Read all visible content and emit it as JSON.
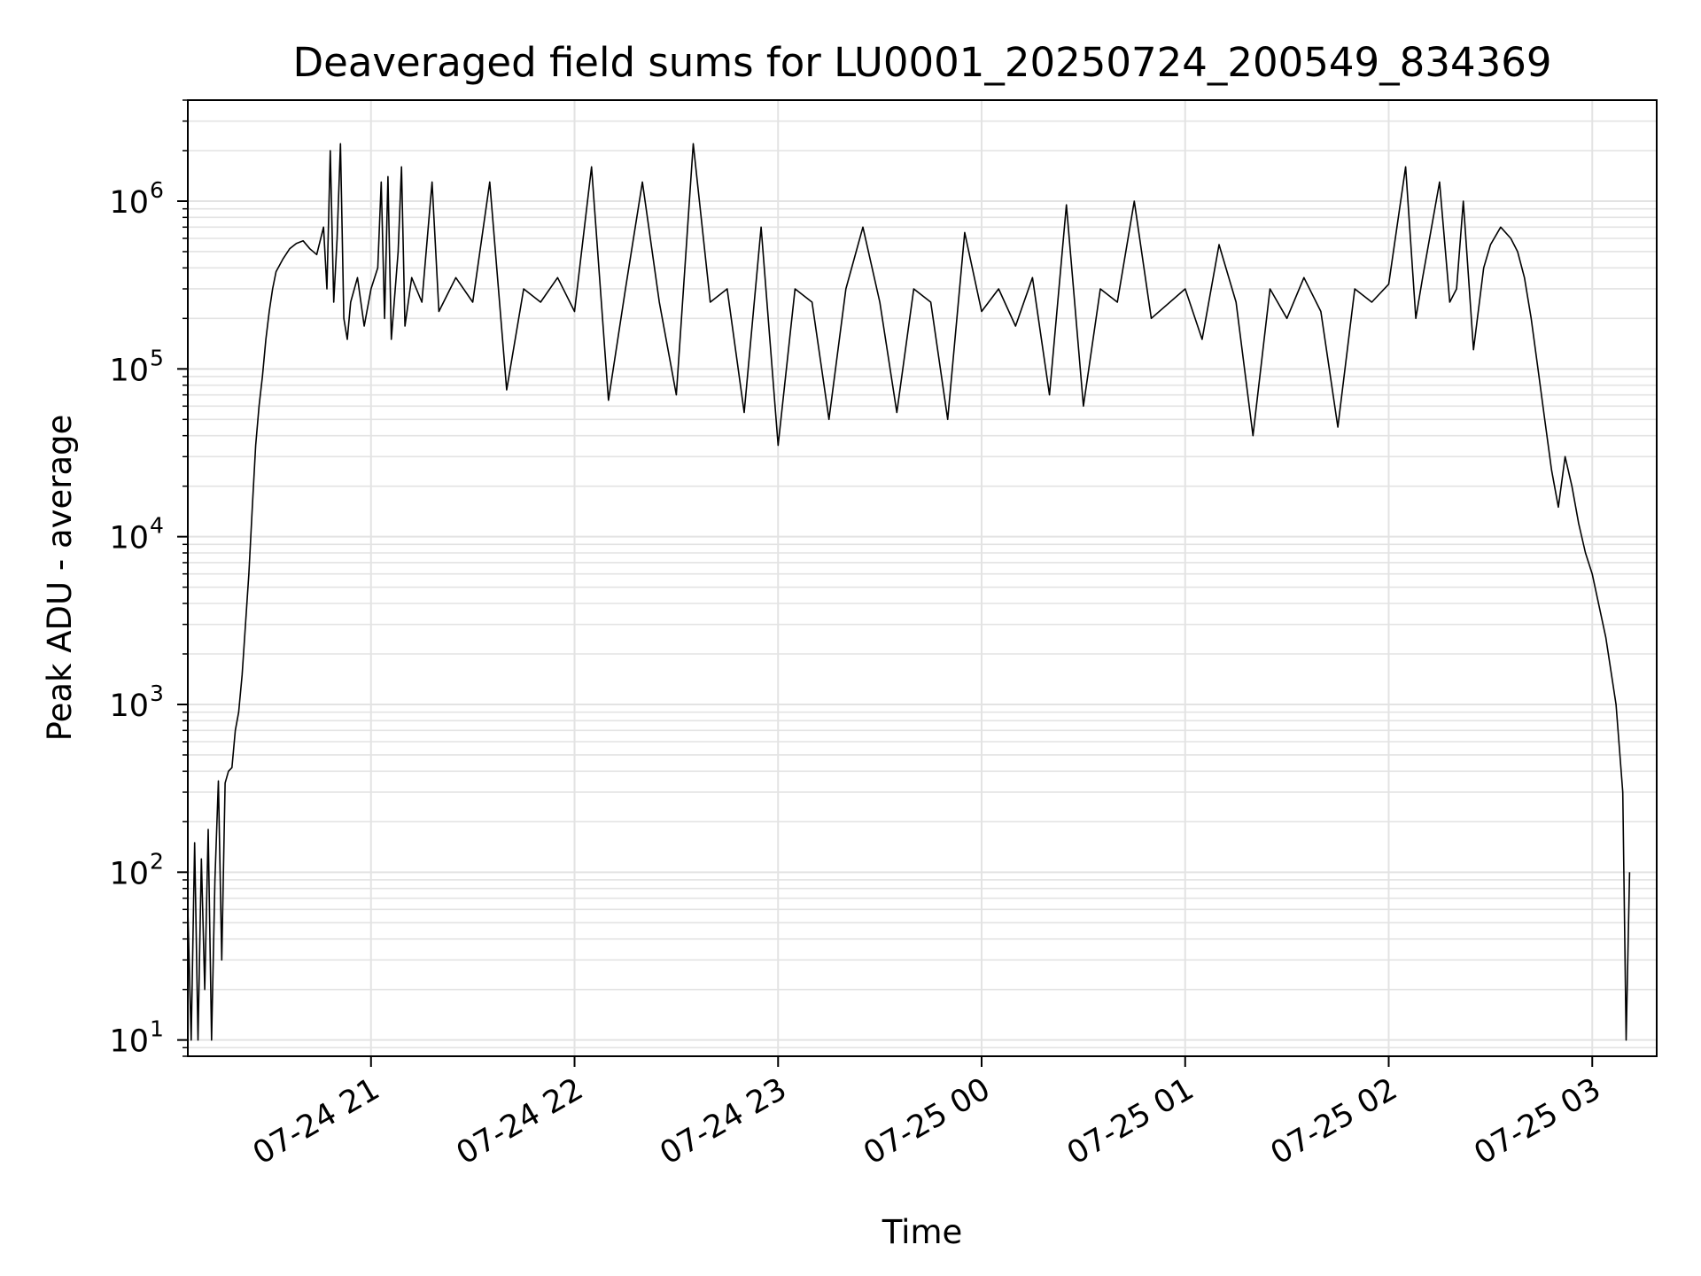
{
  "chart_data": {
    "type": "line",
    "title": "Deaveraged field sums for LU0001_20250724_200549_834369",
    "xlabel": "Time",
    "ylabel": "Peak ADU - average",
    "yscale": "log",
    "ylim": [
      8,
      4000000
    ],
    "xlim": [
      "2025-07-24 20:06:00",
      "2025-07-25 03:19:00"
    ],
    "grid": true,
    "x_ticks": [
      {
        "time": "2025-07-24 21:00",
        "label": "07-24 21"
      },
      {
        "time": "2025-07-24 22:00",
        "label": "07-24 22"
      },
      {
        "time": "2025-07-24 23:00",
        "label": "07-24 23"
      },
      {
        "time": "2025-07-25 00:00",
        "label": "07-25 00"
      },
      {
        "time": "2025-07-25 01:00",
        "label": "07-25 01"
      },
      {
        "time": "2025-07-25 02:00",
        "label": "07-25 02"
      },
      {
        "time": "2025-07-25 03:00",
        "label": "07-25 03"
      }
    ],
    "y_ticks": [
      {
        "value": 10,
        "base": "10",
        "exp": "1"
      },
      {
        "value": 100,
        "base": "10",
        "exp": "2"
      },
      {
        "value": 1000,
        "base": "10",
        "exp": "3"
      },
      {
        "value": 10000,
        "base": "10",
        "exp": "4"
      },
      {
        "value": 100000,
        "base": "10",
        "exp": "5"
      },
      {
        "value": 1000000,
        "base": "10",
        "exp": "6"
      }
    ],
    "series": [
      {
        "color": "#000000",
        "points": [
          [
            "2025-07-24 20:06",
            60
          ],
          [
            "2025-07-24 20:07",
            10
          ],
          [
            "2025-07-24 20:08",
            150
          ],
          [
            "2025-07-24 20:09",
            10
          ],
          [
            "2025-07-24 20:10",
            120
          ],
          [
            "2025-07-24 20:11",
            20
          ],
          [
            "2025-07-24 20:12",
            180
          ],
          [
            "2025-07-24 20:13",
            10
          ],
          [
            "2025-07-24 20:14",
            90
          ],
          [
            "2025-07-24 20:15",
            350
          ],
          [
            "2025-07-24 20:16",
            30
          ],
          [
            "2025-07-24 20:17",
            340
          ],
          [
            "2025-07-24 20:18",
            400
          ],
          [
            "2025-07-24 20:19",
            420
          ],
          [
            "2025-07-24 20:20",
            700
          ],
          [
            "2025-07-24 20:21",
            900
          ],
          [
            "2025-07-24 20:22",
            1500
          ],
          [
            "2025-07-24 20:23",
            3000
          ],
          [
            "2025-07-24 20:24",
            6000
          ],
          [
            "2025-07-24 20:25",
            15000
          ],
          [
            "2025-07-24 20:26",
            35000
          ],
          [
            "2025-07-24 20:27",
            60000
          ],
          [
            "2025-07-24 20:28",
            90000
          ],
          [
            "2025-07-24 20:29",
            150000
          ],
          [
            "2025-07-24 20:30",
            220000
          ],
          [
            "2025-07-24 20:31",
            300000
          ],
          [
            "2025-07-24 20:32",
            380000
          ],
          [
            "2025-07-24 20:34",
            450000
          ],
          [
            "2025-07-24 20:36",
            520000
          ],
          [
            "2025-07-24 20:38",
            560000
          ],
          [
            "2025-07-24 20:40",
            580000
          ],
          [
            "2025-07-24 20:42",
            520000
          ],
          [
            "2025-07-24 20:44",
            480000
          ],
          [
            "2025-07-24 20:46",
            700000
          ],
          [
            "2025-07-24 20:47",
            300000
          ],
          [
            "2025-07-24 20:48",
            2000000
          ],
          [
            "2025-07-24 20:49",
            250000
          ],
          [
            "2025-07-24 20:50",
            600000
          ],
          [
            "2025-07-24 20:51",
            2200000
          ],
          [
            "2025-07-24 20:52",
            200000
          ],
          [
            "2025-07-24 20:53",
            150000
          ],
          [
            "2025-07-24 20:54",
            250000
          ],
          [
            "2025-07-24 20:56",
            350000
          ],
          [
            "2025-07-24 20:58",
            180000
          ],
          [
            "2025-07-24 21:00",
            300000
          ],
          [
            "2025-07-24 21:02",
            400000
          ],
          [
            "2025-07-24 21:03",
            1300000
          ],
          [
            "2025-07-24 21:04",
            200000
          ],
          [
            "2025-07-24 21:05",
            1400000
          ],
          [
            "2025-07-24 21:06",
            150000
          ],
          [
            "2025-07-24 21:08",
            500000
          ],
          [
            "2025-07-24 21:09",
            1600000
          ],
          [
            "2025-07-24 21:10",
            180000
          ],
          [
            "2025-07-24 21:12",
            350000
          ],
          [
            "2025-07-24 21:15",
            250000
          ],
          [
            "2025-07-24 21:18",
            1300000
          ],
          [
            "2025-07-24 21:20",
            220000
          ],
          [
            "2025-07-24 21:25",
            350000
          ],
          [
            "2025-07-24 21:30",
            250000
          ],
          [
            "2025-07-24 21:35",
            1300000
          ],
          [
            "2025-07-24 21:40",
            75000
          ],
          [
            "2025-07-24 21:45",
            300000
          ],
          [
            "2025-07-24 21:50",
            250000
          ],
          [
            "2025-07-24 21:55",
            350000
          ],
          [
            "2025-07-24 22:00",
            220000
          ],
          [
            "2025-07-24 22:05",
            1600000
          ],
          [
            "2025-07-24 22:10",
            65000
          ],
          [
            "2025-07-24 22:15",
            300000
          ],
          [
            "2025-07-24 22:20",
            1300000
          ],
          [
            "2025-07-24 22:25",
            250000
          ],
          [
            "2025-07-24 22:30",
            70000
          ],
          [
            "2025-07-24 22:35",
            2200000
          ],
          [
            "2025-07-24 22:40",
            250000
          ],
          [
            "2025-07-24 22:45",
            300000
          ],
          [
            "2025-07-24 22:50",
            55000
          ],
          [
            "2025-07-24 22:55",
            700000
          ],
          [
            "2025-07-24 23:00",
            35000
          ],
          [
            "2025-07-24 23:05",
            300000
          ],
          [
            "2025-07-24 23:10",
            250000
          ],
          [
            "2025-07-24 23:15",
            50000
          ],
          [
            "2025-07-24 23:20",
            300000
          ],
          [
            "2025-07-24 23:25",
            700000
          ],
          [
            "2025-07-24 23:30",
            250000
          ],
          [
            "2025-07-24 23:35",
            55000
          ],
          [
            "2025-07-24 23:40",
            300000
          ],
          [
            "2025-07-24 23:45",
            250000
          ],
          [
            "2025-07-24 23:50",
            50000
          ],
          [
            "2025-07-24 23:55",
            650000
          ],
          [
            "2025-07-25 00:00",
            220000
          ],
          [
            "2025-07-25 00:05",
            300000
          ],
          [
            "2025-07-25 00:10",
            180000
          ],
          [
            "2025-07-25 00:15",
            350000
          ],
          [
            "2025-07-25 00:20",
            70000
          ],
          [
            "2025-07-25 00:25",
            950000
          ],
          [
            "2025-07-25 00:30",
            60000
          ],
          [
            "2025-07-25 00:35",
            300000
          ],
          [
            "2025-07-25 00:40",
            250000
          ],
          [
            "2025-07-25 00:45",
            1000000
          ],
          [
            "2025-07-25 00:50",
            200000
          ],
          [
            "2025-07-25 01:00",
            300000
          ],
          [
            "2025-07-25 01:05",
            150000
          ],
          [
            "2025-07-25 01:10",
            550000
          ],
          [
            "2025-07-25 01:15",
            250000
          ],
          [
            "2025-07-25 01:20",
            40000
          ],
          [
            "2025-07-25 01:25",
            300000
          ],
          [
            "2025-07-25 01:30",
            200000
          ],
          [
            "2025-07-25 01:35",
            350000
          ],
          [
            "2025-07-25 01:40",
            220000
          ],
          [
            "2025-07-25 01:45",
            45000
          ],
          [
            "2025-07-25 01:50",
            300000
          ],
          [
            "2025-07-25 01:55",
            250000
          ],
          [
            "2025-07-25 02:00",
            320000
          ],
          [
            "2025-07-25 02:05",
            1600000
          ],
          [
            "2025-07-25 02:08",
            200000
          ],
          [
            "2025-07-25 02:10",
            350000
          ],
          [
            "2025-07-25 02:15",
            1300000
          ],
          [
            "2025-07-25 02:18",
            250000
          ],
          [
            "2025-07-25 02:20",
            300000
          ],
          [
            "2025-07-25 02:22",
            1000000
          ],
          [
            "2025-07-25 02:25",
            130000
          ],
          [
            "2025-07-25 02:28",
            400000
          ],
          [
            "2025-07-25 02:30",
            550000
          ],
          [
            "2025-07-25 02:33",
            700000
          ],
          [
            "2025-07-25 02:36",
            600000
          ],
          [
            "2025-07-25 02:38",
            500000
          ],
          [
            "2025-07-25 02:40",
            350000
          ],
          [
            "2025-07-25 02:42",
            200000
          ],
          [
            "2025-07-25 02:44",
            100000
          ],
          [
            "2025-07-25 02:46",
            50000
          ],
          [
            "2025-07-25 02:48",
            25000
          ],
          [
            "2025-07-25 02:50",
            15000
          ],
          [
            "2025-07-25 02:52",
            30000
          ],
          [
            "2025-07-25 02:54",
            20000
          ],
          [
            "2025-07-25 02:56",
            12000
          ],
          [
            "2025-07-25 02:58",
            8000
          ],
          [
            "2025-07-25 03:00",
            6000
          ],
          [
            "2025-07-25 03:04",
            2500
          ],
          [
            "2025-07-25 03:07",
            1000
          ],
          [
            "2025-07-25 03:09",
            300
          ],
          [
            "2025-07-25 03:10",
            10
          ],
          [
            "2025-07-25 03:11",
            100
          ]
        ]
      }
    ]
  }
}
